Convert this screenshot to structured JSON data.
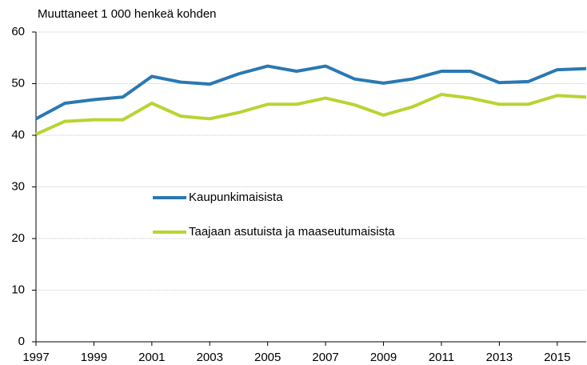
{
  "chart_data": {
    "type": "line",
    "y_label": "Muuttaneet 1 000 henkeä kohden",
    "x": [
      1997,
      1998,
      1999,
      2000,
      2001,
      2002,
      2003,
      2004,
      2005,
      2006,
      2007,
      2008,
      2009,
      2010,
      2011,
      2012,
      2013,
      2014,
      2015,
      2016
    ],
    "series": [
      {
        "name": "Kaupunkimaisista",
        "color": "#2a78b2",
        "values": [
          43.2,
          46.2,
          46.9,
          47.4,
          51.4,
          50.3,
          49.9,
          51.9,
          53.4,
          52.4,
          53.4,
          50.9,
          50.1,
          50.9,
          52.4,
          52.4,
          50.2,
          50.4,
          52.7,
          52.9
        ]
      },
      {
        "name": "Taajaan asutuista ja maaseutumaisista",
        "color": "#b8d432",
        "values": [
          40.2,
          42.7,
          43.0,
          43.0,
          46.2,
          43.7,
          43.2,
          44.4,
          46.0,
          46.0,
          47.2,
          45.9,
          43.9,
          45.5,
          47.9,
          47.2,
          46.0,
          46.0,
          47.7,
          47.4
        ]
      }
    ],
    "xlim": [
      1997,
      2016
    ],
    "xticks": [
      1997,
      1999,
      2001,
      2003,
      2005,
      2007,
      2009,
      2011,
      2013,
      2015
    ],
    "ylim": [
      0,
      60
    ],
    "yticks": [
      0,
      10,
      20,
      30,
      40,
      50,
      60
    ],
    "grid": true
  }
}
